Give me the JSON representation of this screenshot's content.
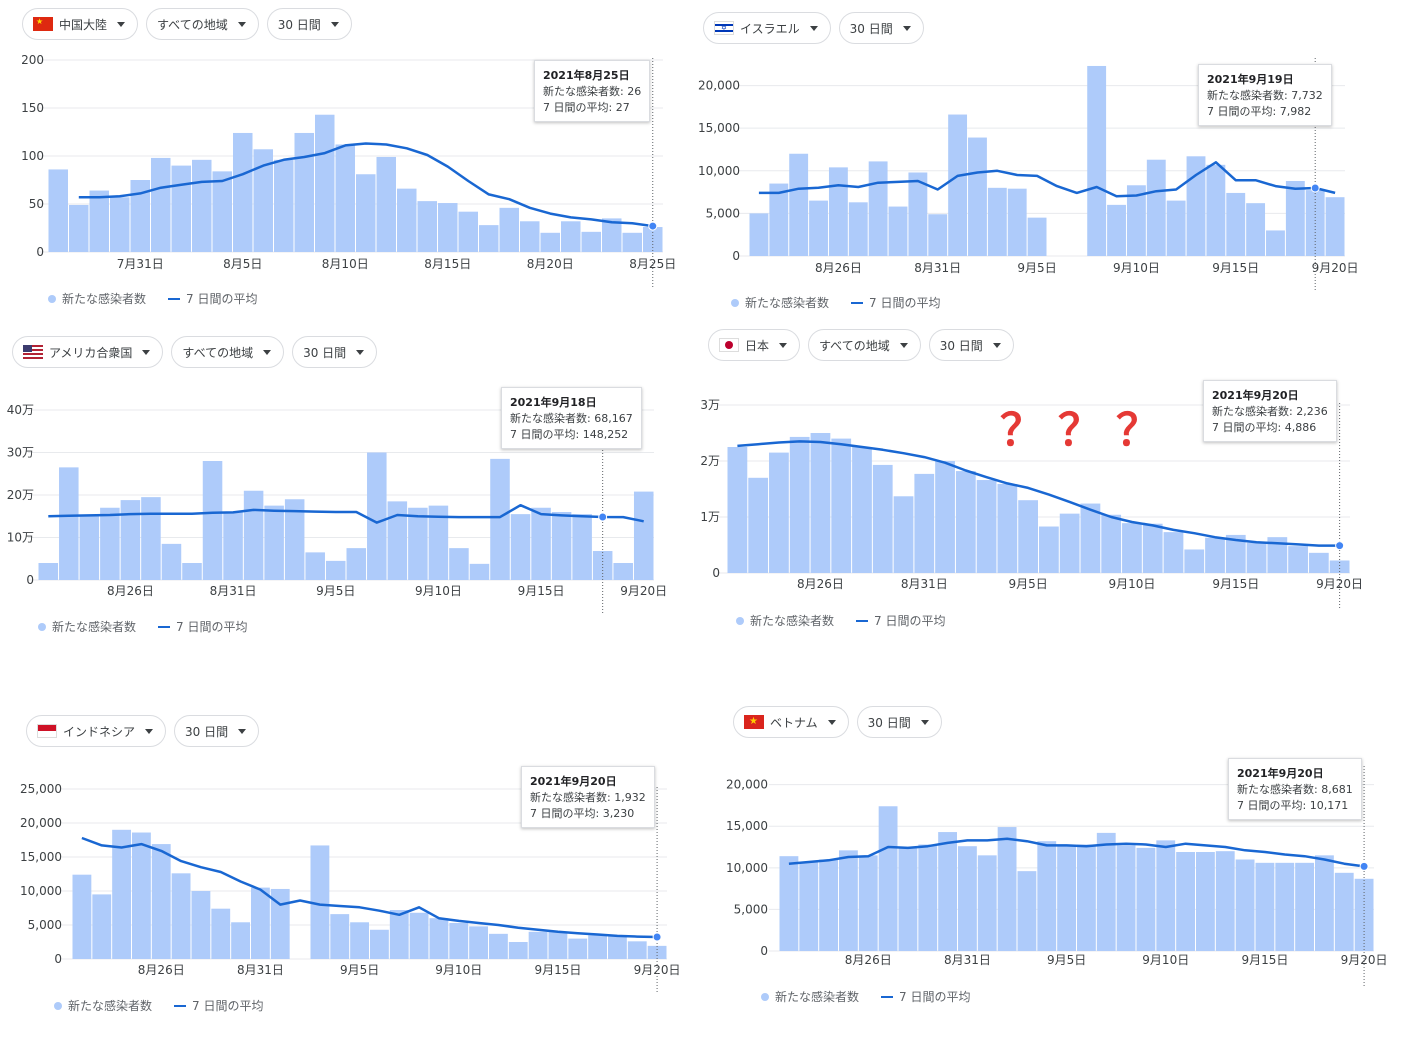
{
  "legend": {
    "cases": "新たな感染者数",
    "average": "7 日間の平均"
  },
  "annotation": {
    "question_marks": "？？？"
  },
  "panels": [
    {
      "controls": [
        {
          "label": "中国大陸",
          "flag": "china-flag-icon"
        },
        {
          "label": "すべての地域"
        },
        {
          "label": "30 日間"
        }
      ],
      "tooltip": {
        "date": "2021年8月25日",
        "line1": "新たな感染者数: 26",
        "line2": "7 日間の平均: 27"
      }
    },
    {
      "controls": [
        {
          "label": "イスラエル",
          "flag": "israel-flag-icon"
        },
        {
          "label": "30 日間"
        }
      ],
      "tooltip": {
        "date": "2021年9月19日",
        "line1": "新たな感染者数: 7,732",
        "line2": "7 日間の平均: 7,982"
      }
    },
    {
      "controls": [
        {
          "label": "アメリカ合衆国",
          "flag": "usa-flag-icon"
        },
        {
          "label": "すべての地域"
        },
        {
          "label": "30 日間"
        }
      ],
      "tooltip": {
        "date": "2021年9月18日",
        "line1": "新たな感染者数: 68,167",
        "line2": "7 日間の平均: 148,252"
      }
    },
    {
      "controls": [
        {
          "label": "日本",
          "flag": "japan-flag-icon"
        },
        {
          "label": "すべての地域"
        },
        {
          "label": "30 日間"
        }
      ],
      "tooltip": {
        "date": "2021年9月20日",
        "line1": "新たな感染者数: 2,236",
        "line2": "7 日間の平均: 4,886"
      }
    },
    {
      "controls": [
        {
          "label": "インドネシア",
          "flag": "indonesia-flag-icon"
        },
        {
          "label": "30 日間"
        }
      ],
      "tooltip": {
        "date": "2021年9月20日",
        "line1": "新たな感染者数: 1,932",
        "line2": "7 日間の平均: 3,230"
      }
    },
    {
      "controls": [
        {
          "label": "ベトナム",
          "flag": "vietnam-flag-icon"
        },
        {
          "label": "30 日間"
        }
      ],
      "tooltip": {
        "date": "2021年9月20日",
        "line1": "新たな感染者数: 8,681",
        "line2": "7 日間の平均: 10,171"
      }
    }
  ],
  "colors": {
    "bar": "#aecbfa",
    "line": "#1967d2",
    "grid": "#e8eaed",
    "axis_text": "#3c4043"
  },
  "chart_data": [
    {
      "type": "bar",
      "ylim": [
        0,
        200
      ],
      "yticks": [
        0,
        50,
        100,
        150,
        200
      ],
      "ytick_labels": [
        "0",
        "50",
        "100",
        "150",
        "200"
      ],
      "xtick_labels": [
        "7月31日",
        "8月5日",
        "8月10日",
        "8月15日",
        "8月20日",
        "8月25日"
      ],
      "xtick_index": [
        4,
        9,
        14,
        19,
        24,
        29
      ],
      "series": [
        {
          "name": "新たな感染者数",
          "type": "bar",
          "values": [
            86,
            49,
            64,
            57,
            75,
            98,
            90,
            96,
            84,
            124,
            107,
            96,
            124,
            143,
            112,
            81,
            99,
            66,
            53,
            51,
            42,
            28,
            46,
            32,
            20,
            32,
            21,
            35,
            20,
            26
          ]
        },
        {
          "name": "7 日間の平均",
          "type": "line",
          "values": [
            null,
            57,
            57,
            58,
            61,
            67,
            70,
            73,
            74,
            81,
            90,
            96,
            99,
            103,
            111,
            113,
            112,
            108,
            101,
            89,
            74,
            60,
            55,
            46,
            40,
            36,
            34,
            31,
            30,
            27
          ]
        }
      ],
      "highlight_index": 29
    },
    {
      "type": "bar",
      "ylim": [
        0,
        23000
      ],
      "yticks": [
        0,
        5000,
        10000,
        15000,
        20000
      ],
      "ytick_labels": [
        "0",
        "5,000",
        "10,000",
        "15,000",
        "20,000"
      ],
      "xtick_labels": [
        "8月26日",
        "8月31日",
        "9月5日",
        "9月10日",
        "9月15日",
        "9月20日"
      ],
      "xtick_index": [
        4,
        9,
        14,
        19,
        24,
        29
      ],
      "series": [
        {
          "name": "新たな感染者数",
          "type": "bar",
          "values": [
            5000,
            8500,
            12000,
            6500,
            10400,
            6300,
            11100,
            5800,
            9800,
            4900,
            16600,
            13900,
            8000,
            7900,
            4500,
            0,
            0,
            22300,
            6000,
            8300,
            11300,
            6500,
            11700,
            10700,
            7400,
            6200,
            3000,
            8800,
            7732,
            6900
          ]
        },
        {
          "name": "7 日間の平均",
          "type": "line",
          "values": [
            7400,
            7400,
            7900,
            8000,
            8300,
            8100,
            8600,
            8700,
            8800,
            7800,
            9400,
            9800,
            10000,
            9500,
            9400,
            8200,
            7400,
            8100,
            7000,
            7100,
            7600,
            7800,
            9500,
            11000,
            8900,
            8900,
            8200,
            7900,
            7982,
            7400
          ]
        }
      ],
      "highlight_index": 28
    },
    {
      "type": "bar",
      "ylim": [
        0,
        400000
      ],
      "yticks": [
        0,
        100000,
        200000,
        300000,
        400000
      ],
      "ytick_labels": [
        "0",
        "10万",
        "20万",
        "30万",
        "40万"
      ],
      "xtick_labels": [
        "8月26日",
        "8月31日",
        "9月5日",
        "9月10日",
        "9月15日",
        "9月20日"
      ],
      "xtick_index": [
        4,
        9,
        14,
        19,
        24,
        29
      ],
      "series": [
        {
          "name": "新たな感染者数",
          "type": "bar",
          "values": [
            40000,
            265000,
            150000,
            170000,
            188000,
            195000,
            85000,
            40000,
            280000,
            160000,
            210000,
            175000,
            190000,
            65000,
            45000,
            75000,
            300000,
            185000,
            170000,
            175000,
            75000,
            38000,
            285000,
            155000,
            170000,
            160000,
            155000,
            68167,
            40000,
            208000
          ]
        },
        {
          "name": "7 日間の平均",
          "type": "line",
          "values": [
            150000,
            151000,
            152000,
            153000,
            155000,
            156000,
            156000,
            156000,
            158000,
            159000,
            165000,
            163000,
            162000,
            161000,
            160000,
            160000,
            135000,
            153000,
            150000,
            149000,
            148000,
            148000,
            148000,
            176000,
            155000,
            152000,
            150000,
            148252,
            148000,
            138000
          ]
        }
      ],
      "highlight_index": 27
    },
    {
      "type": "bar",
      "ylim": [
        0,
        30000
      ],
      "yticks": [
        0,
        10000,
        20000,
        30000
      ],
      "ytick_labels": [
        "0",
        "1万",
        "2万",
        "3万"
      ],
      "xtick_labels": [
        "8月26日",
        "8月31日",
        "9月5日",
        "9月10日",
        "9月15日",
        "9月20日"
      ],
      "xtick_index": [
        4,
        9,
        14,
        19,
        24,
        29
      ],
      "series": [
        {
          "name": "新たな感染者数",
          "type": "bar",
          "values": [
            22500,
            17000,
            21500,
            24300,
            25000,
            24000,
            22500,
            19300,
            13700,
            17700,
            20000,
            18200,
            16600,
            15900,
            13000,
            8300,
            10600,
            12400,
            10400,
            8900,
            8800,
            7300,
            4200,
            6300,
            6800,
            5400,
            6400,
            4800,
            3600,
            2236
          ]
        },
        {
          "name": "7 日間の平均",
          "type": "line",
          "values": [
            22700,
            23000,
            23300,
            23500,
            23400,
            23000,
            22500,
            22000,
            21400,
            20700,
            19700,
            18300,
            17100,
            16000,
            15200,
            14000,
            12700,
            11300,
            10000,
            9100,
            8500,
            7700,
            7100,
            6400,
            5900,
            5500,
            5300,
            5100,
            4900,
            4886
          ]
        }
      ],
      "highlight_index": 29
    },
    {
      "type": "bar",
      "ylim": [
        0,
        25000
      ],
      "yticks": [
        0,
        5000,
        10000,
        15000,
        20000,
        25000
      ],
      "ytick_labels": [
        "0",
        "5,000",
        "10,000",
        "15,000",
        "20,000",
        "25,000"
      ],
      "xtick_labels": [
        "8月26日",
        "8月31日",
        "9月5日",
        "9月10日",
        "9月15日",
        "9月20日"
      ],
      "xtick_index": [
        4,
        9,
        14,
        19,
        24,
        29
      ],
      "series": [
        {
          "name": "新たな感染者数",
          "type": "bar",
          "values": [
            12400,
            9500,
            19000,
            18600,
            16900,
            12600,
            10000,
            7400,
            5400,
            10500,
            10300,
            0,
            16700,
            6600,
            5400,
            4300,
            7200,
            6800,
            6000,
            5300,
            4800,
            3700,
            2500,
            4000,
            4000,
            3000,
            3500,
            3400,
            2600,
            1932
          ]
        },
        {
          "name": "7 日間の平均",
          "type": "line",
          "values": [
            17800,
            16700,
            16400,
            16900,
            15900,
            14400,
            13500,
            12800,
            11400,
            10200,
            8000,
            8600,
            8000,
            7800,
            7600,
            7100,
            6500,
            7600,
            6000,
            5600,
            5300,
            5000,
            4600,
            4300,
            4000,
            3800,
            3600,
            3400,
            3300,
            3230
          ]
        }
      ],
      "highlight_index": 29
    },
    {
      "type": "bar",
      "ylim": [
        0,
        22000
      ],
      "yticks": [
        0,
        5000,
        10000,
        15000,
        20000
      ],
      "ytick_labels": [
        "0",
        "5,000",
        "10,000",
        "15,000",
        "20,000"
      ],
      "xtick_labels": [
        "8月26日",
        "8月31日",
        "9月5日",
        "9月10日",
        "9月15日",
        "9月20日"
      ],
      "xtick_index": [
        4,
        9,
        14,
        19,
        24,
        29
      ],
      "series": [
        {
          "name": "新たな感染者数",
          "type": "bar",
          "values": [
            11400,
            10700,
            11000,
            12100,
            11500,
            17400,
            12400,
            12800,
            14300,
            12600,
            11500,
            14900,
            9600,
            13200,
            12700,
            12800,
            14200,
            12700,
            12400,
            13300,
            11900,
            11900,
            12000,
            11000,
            10600,
            10600,
            10600,
            11500,
            9400,
            8681
          ]
        },
        {
          "name": "7 日間の平均",
          "type": "line",
          "values": [
            10500,
            10700,
            10900,
            11300,
            11400,
            12500,
            12400,
            12600,
            13000,
            13300,
            13300,
            13500,
            13200,
            12700,
            12700,
            12600,
            12800,
            12900,
            12800,
            12500,
            12900,
            12700,
            12500,
            12100,
            11900,
            11600,
            11400,
            11000,
            10500,
            10171
          ]
        }
      ],
      "highlight_index": 29
    }
  ]
}
